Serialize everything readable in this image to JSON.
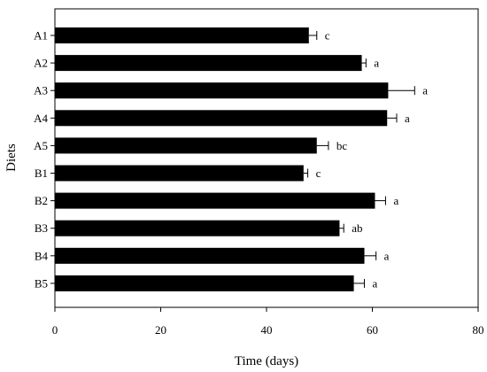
{
  "chart_data": {
    "type": "bar",
    "orientation": "horizontal",
    "xlabel": "Time (days)",
    "ylabel": "Diets",
    "xlim": [
      0,
      80
    ],
    "xticks": [
      0,
      20,
      40,
      60,
      80
    ],
    "grid": false,
    "legend": "none",
    "bar_color": "#000000",
    "categories": [
      "A1",
      "A2",
      "A3",
      "A4",
      "A5",
      "B1",
      "B2",
      "B3",
      "B4",
      "B5"
    ],
    "values": [
      48.0,
      58.0,
      63.0,
      62.8,
      49.5,
      47.0,
      60.5,
      53.8,
      58.5,
      56.5
    ],
    "errors": [
      1.5,
      0.8,
      5.0,
      1.8,
      2.2,
      0.8,
      2.0,
      0.8,
      2.2,
      2.0
    ],
    "significance": [
      "c",
      "a",
      "a",
      "a",
      "bc",
      "c",
      "a",
      "ab",
      "a",
      "a"
    ]
  }
}
